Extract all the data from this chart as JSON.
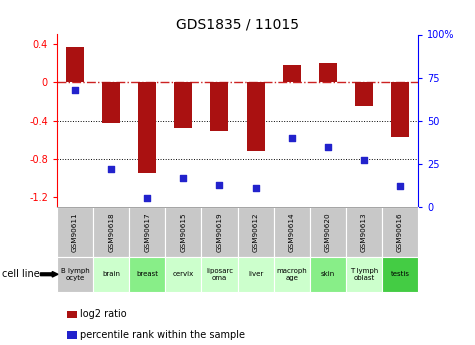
{
  "title": "GDS1835 / 11015",
  "gsm_labels": [
    "GSM90611",
    "GSM90618",
    "GSM90617",
    "GSM90615",
    "GSM90619",
    "GSM90612",
    "GSM90614",
    "GSM90620",
    "GSM90613",
    "GSM90616"
  ],
  "cell_labels": [
    "B lymph\nocyte",
    "brain",
    "breast",
    "cervix",
    "liposarc\noma",
    "liver",
    "macroph\nage",
    "skin",
    "T lymph\noblast",
    "testis"
  ],
  "cell_colors": [
    "#c8c8c8",
    "#ccffcc",
    "#88ee88",
    "#ccffcc",
    "#ccffcc",
    "#ccffcc",
    "#ccffcc",
    "#88ee88",
    "#ccffcc",
    "#44cc44"
  ],
  "log2_ratio": [
    0.37,
    -0.42,
    -0.95,
    -0.48,
    -0.51,
    -0.72,
    0.18,
    0.2,
    -0.25,
    -0.57
  ],
  "percentile_rank": [
    68,
    22,
    5,
    17,
    13,
    11,
    40,
    35,
    27,
    12
  ],
  "ylim_left": [
    -1.3,
    0.5
  ],
  "ylim_right": [
    0,
    100
  ],
  "bar_color": "#aa1111",
  "dot_color": "#2222cc",
  "zero_line_color": "#cc2222",
  "bg_color": "#ffffff",
  "plot_bg": "#ffffff",
  "gsm_bg": "#c8c8c8",
  "title_fontsize": 10,
  "tick_fontsize": 7,
  "label_fontsize": 6
}
